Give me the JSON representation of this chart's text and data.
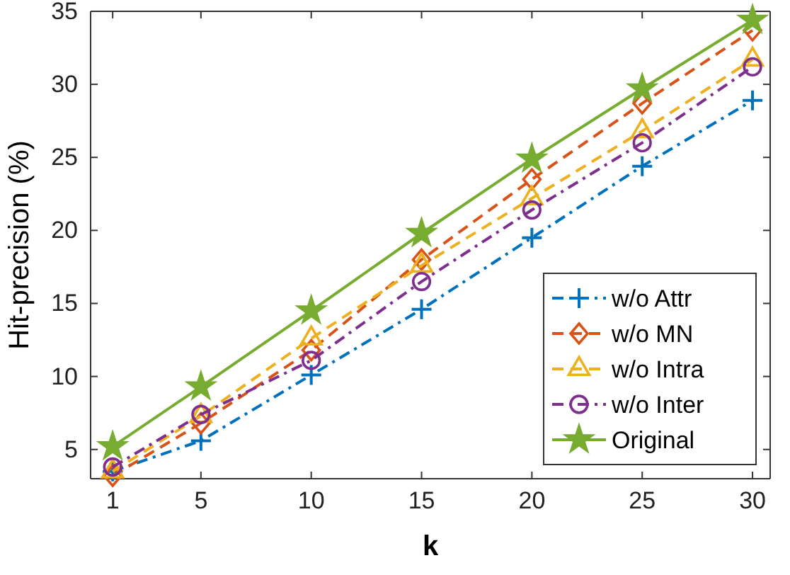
{
  "chart_data": {
    "type": "line",
    "xlabel": "k",
    "ylabel": "Hit-precision (%)",
    "x": [
      1,
      5,
      10,
      15,
      20,
      25,
      30
    ],
    "xlim": [
      0,
      30.8
    ],
    "xticks": [
      1,
      5,
      10,
      15,
      20,
      25,
      30
    ],
    "ylim": [
      3,
      35
    ],
    "yticks": [
      5,
      10,
      15,
      20,
      25,
      30,
      35
    ],
    "grid": false,
    "legend": "bottom right",
    "series": [
      {
        "name": "w/o Attr",
        "color": "#0072bd",
        "marker": "cross",
        "line_style": "dashdot",
        "values": [
          3.5,
          5.6,
          10.1,
          14.6,
          19.5,
          24.4,
          28.9
        ]
      },
      {
        "name": "w/o MN",
        "color": "#d95319",
        "marker": "diamond",
        "line_style": "dashed",
        "values": [
          3.2,
          6.8,
          11.8,
          18.0,
          23.5,
          28.7,
          33.7
        ]
      },
      {
        "name": "w/o Intra",
        "color": "#edb120",
        "marker": "triangle",
        "line_style": "dashed",
        "values": [
          3.5,
          7.3,
          12.6,
          17.6,
          22.2,
          26.8,
          31.7
        ]
      },
      {
        "name": "w/o Inter",
        "color": "#7e2f8e",
        "marker": "circle",
        "line_style": "dashdot",
        "values": [
          3.8,
          7.4,
          11.1,
          16.5,
          21.4,
          26.0,
          31.2
        ]
      },
      {
        "name": "Original",
        "color": "#77ac30",
        "marker": "star",
        "line_style": "solid",
        "values": [
          5.2,
          9.3,
          14.5,
          19.8,
          24.9,
          29.7,
          34.4
        ]
      }
    ]
  }
}
